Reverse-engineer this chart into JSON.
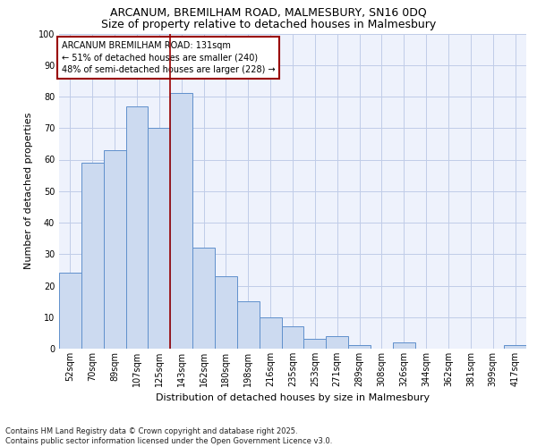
{
  "title1": "ARCANUM, BREMILHAM ROAD, MALMESBURY, SN16 0DQ",
  "title2": "Size of property relative to detached houses in Malmesbury",
  "xlabel": "Distribution of detached houses by size in Malmesbury",
  "ylabel": "Number of detached properties",
  "categories": [
    "52sqm",
    "70sqm",
    "89sqm",
    "107sqm",
    "125sqm",
    "143sqm",
    "162sqm",
    "180sqm",
    "198sqm",
    "216sqm",
    "235sqm",
    "253sqm",
    "271sqm",
    "289sqm",
    "308sqm",
    "326sqm",
    "344sqm",
    "362sqm",
    "381sqm",
    "399sqm",
    "417sqm"
  ],
  "values": [
    24,
    59,
    63,
    77,
    70,
    81,
    32,
    23,
    15,
    10,
    7,
    3,
    4,
    1,
    0,
    2,
    0,
    0,
    0,
    0,
    1
  ],
  "bar_color": "#ccdaf0",
  "bar_edge_color": "#6090cc",
  "vline_x_index": 5,
  "vline_color": "#990000",
  "annotation_line1": "ARCANUM BREMILHAM ROAD: 131sqm",
  "annotation_line2": "← 51% of detached houses are smaller (240)",
  "annotation_line3": "48% of semi-detached houses are larger (228) →",
  "annotation_box_color": "#990000",
  "ylim": [
    0,
    100
  ],
  "yticks": [
    0,
    10,
    20,
    30,
    40,
    50,
    60,
    70,
    80,
    90,
    100
  ],
  "footer": "Contains HM Land Registry data © Crown copyright and database right 2025.\nContains public sector information licensed under the Open Government Licence v3.0.",
  "bg_color": "#eef2fc",
  "grid_color": "#c0cce8",
  "title1_fontsize": 9,
  "title2_fontsize": 9,
  "xlabel_fontsize": 8,
  "ylabel_fontsize": 8,
  "tick_fontsize": 7,
  "annot_fontsize": 7,
  "footer_fontsize": 6
}
